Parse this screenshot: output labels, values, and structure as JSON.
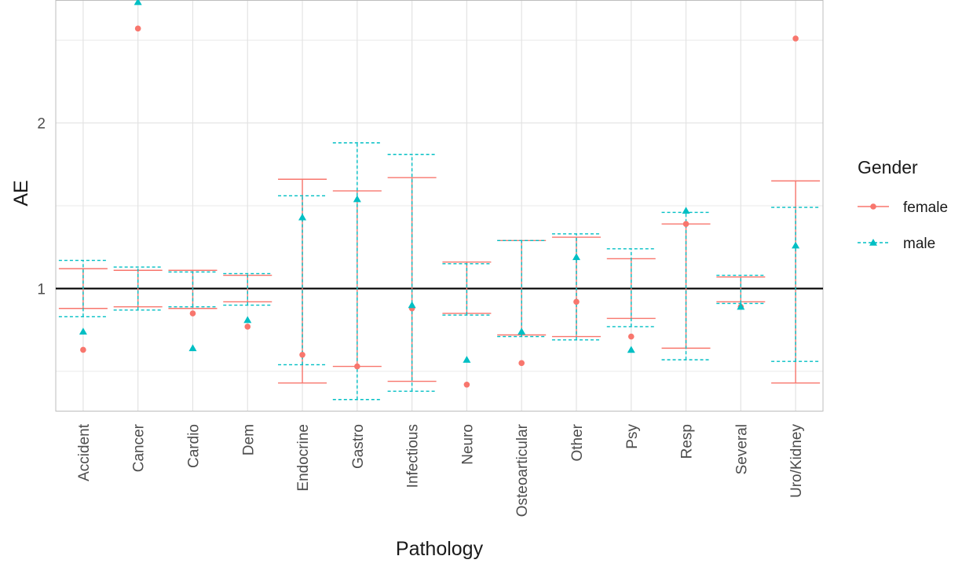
{
  "chart_data": {
    "type": "errorbar-scatter",
    "xlabel": "Pathology",
    "ylabel": "AE",
    "categories": [
      "Accident",
      "Cancer",
      "Cardio",
      "Dem",
      "Endocrine",
      "Gastro",
      "Infectious",
      "Neuro",
      "Osteoarticular",
      "Other",
      "Psy",
      "Resp",
      "Several",
      "Uro/Kidney"
    ],
    "ylim": [
      0.26,
      2.74
    ],
    "yticks": [
      1,
      2
    ],
    "reference_line": 1,
    "grid": true,
    "legend": {
      "title": "Gender",
      "position": "right"
    },
    "series": [
      {
        "name": "female",
        "color": "#F8766D",
        "marker": "circle",
        "linestyle": "solid",
        "points": [
          0.63,
          2.57,
          0.85,
          0.77,
          0.6,
          0.53,
          0.88,
          0.42,
          0.55,
          0.92,
          0.71,
          1.39,
          0.89,
          2.51
        ],
        "lower": [
          0.88,
          0.89,
          0.88,
          0.92,
          0.43,
          0.53,
          0.44,
          0.85,
          0.72,
          0.71,
          0.82,
          0.64,
          0.92,
          0.43
        ],
        "upper": [
          1.12,
          1.11,
          1.11,
          1.08,
          1.66,
          1.59,
          1.67,
          1.16,
          1.29,
          1.31,
          1.18,
          1.39,
          1.07,
          1.65
        ]
      },
      {
        "name": "male",
        "color": "#00BFC4",
        "marker": "triangle",
        "linestyle": "dashed",
        "points": [
          0.74,
          2.73,
          0.64,
          0.81,
          1.43,
          1.54,
          0.9,
          0.57,
          0.74,
          1.19,
          0.63,
          1.47,
          0.89,
          1.26
        ],
        "lower": [
          0.83,
          0.87,
          0.89,
          0.9,
          0.54,
          0.33,
          0.38,
          0.84,
          0.71,
          0.69,
          0.77,
          0.57,
          0.91,
          0.56
        ],
        "upper": [
          1.17,
          1.13,
          1.1,
          1.09,
          1.56,
          1.88,
          1.81,
          1.15,
          1.29,
          1.33,
          1.24,
          1.46,
          1.08,
          1.49
        ]
      }
    ]
  }
}
